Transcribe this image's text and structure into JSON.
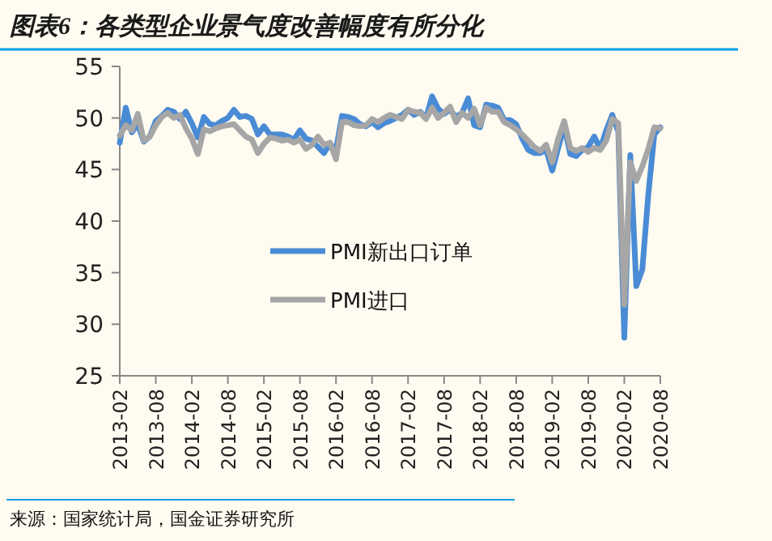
{
  "chart_data": {
    "type": "line",
    "title": "图表6：各类型企业景气度改善幅度有所分化",
    "x": [
      "2013-02",
      "2013-03",
      "2013-04",
      "2013-05",
      "2013-06",
      "2013-07",
      "2013-08",
      "2013-09",
      "2013-10",
      "2013-11",
      "2013-12",
      "2014-01",
      "2014-02",
      "2014-03",
      "2014-04",
      "2014-05",
      "2014-06",
      "2014-07",
      "2014-08",
      "2014-09",
      "2014-10",
      "2014-11",
      "2014-12",
      "2015-01",
      "2015-02",
      "2015-03",
      "2015-04",
      "2015-05",
      "2015-06",
      "2015-07",
      "2015-08",
      "2015-09",
      "2015-10",
      "2015-11",
      "2015-12",
      "2016-01",
      "2016-02",
      "2016-03",
      "2016-04",
      "2016-05",
      "2016-06",
      "2016-07",
      "2016-08",
      "2016-09",
      "2016-10",
      "2016-11",
      "2016-12",
      "2017-01",
      "2017-02",
      "2017-03",
      "2017-04",
      "2017-05",
      "2017-06",
      "2017-07",
      "2017-08",
      "2017-09",
      "2017-10",
      "2017-11",
      "2017-12",
      "2018-01",
      "2018-02",
      "2018-03",
      "2018-04",
      "2018-05",
      "2018-06",
      "2018-07",
      "2018-08",
      "2018-09",
      "2018-10",
      "2018-11",
      "2018-12",
      "2019-01",
      "2019-02",
      "2019-03",
      "2019-04",
      "2019-05",
      "2019-06",
      "2019-07",
      "2019-08",
      "2019-09",
      "2019-10",
      "2019-11",
      "2019-12",
      "2020-01",
      "2020-02",
      "2020-03",
      "2020-04",
      "2020-05",
      "2020-06",
      "2020-07",
      "2020-08"
    ],
    "series": [
      {
        "name": "PMI新出口订单",
        "color": "#4a8bd6",
        "values": [
          47.6,
          51.0,
          48.6,
          49.4,
          47.7,
          48.2,
          49.7,
          50.2,
          50.8,
          50.6,
          49.9,
          50.6,
          49.5,
          48.1,
          50.1,
          49.4,
          49.3,
          49.7,
          50.0,
          50.8,
          50.1,
          50.2,
          49.9,
          48.4,
          49.2,
          48.4,
          48.4,
          48.4,
          48.2,
          47.9,
          48.8,
          48.0,
          47.8,
          47.2,
          46.6,
          47.5,
          46.9,
          50.2,
          50.1,
          49.9,
          49.4,
          49.2,
          49.6,
          49.1,
          49.5,
          49.7,
          50.0,
          50.3,
          50.8,
          50.3,
          50.6,
          50.0,
          52.1,
          50.9,
          50.4,
          50.8,
          50.1,
          50.5,
          51.9,
          49.3,
          49.1,
          51.3,
          51.2,
          51.0,
          49.8,
          49.8,
          49.4,
          48.0,
          46.9,
          46.6,
          46.6,
          46.9,
          44.9,
          47.1,
          49.2,
          46.5,
          46.3,
          46.9,
          47.2,
          48.2,
          47.0,
          48.8,
          50.3,
          48.7,
          28.7,
          46.4,
          33.7,
          35.3,
          42.6,
          48.4,
          49.1
        ]
      },
      {
        "name": "PMI进口",
        "color": "#a6a6a6",
        "values": [
          48.3,
          49.3,
          48.8,
          50.4,
          47.8,
          48.2,
          49.3,
          50.1,
          50.5,
          50.0,
          50.3,
          49.0,
          48.0,
          46.5,
          48.9,
          48.7,
          49.0,
          49.2,
          49.3,
          49.4,
          48.8,
          48.2,
          47.9,
          46.6,
          47.5,
          48.1,
          48.0,
          47.8,
          47.9,
          47.6,
          47.9,
          47.0,
          47.4,
          48.2,
          47.4,
          47.6,
          46.0,
          49.6,
          49.6,
          49.3,
          49.2,
          49.3,
          49.9,
          49.6,
          50.0,
          50.3,
          50.1,
          49.9,
          50.8,
          50.6,
          50.5,
          49.9,
          51.0,
          50.0,
          50.5,
          51.1,
          49.6,
          50.5,
          50.0,
          50.9,
          49.3,
          51.0,
          50.6,
          50.6,
          49.6,
          49.3,
          48.9,
          48.4,
          47.8,
          47.2,
          46.8,
          47.4,
          45.7,
          48.0,
          49.7,
          47.1,
          46.8,
          47.1,
          46.7,
          47.1,
          46.9,
          47.8,
          49.9,
          49.5,
          31.9,
          45.7,
          43.9,
          45.3,
          47.0,
          49.1,
          49.0
        ]
      }
    ],
    "xlim": [
      "2013-02",
      "2020-08"
    ],
    "xticks": [
      "2013-02",
      "2013-08",
      "2014-02",
      "2014-08",
      "2015-02",
      "2015-08",
      "2016-02",
      "2016-08",
      "2017-02",
      "2017-08",
      "2018-02",
      "2018-08",
      "2019-02",
      "2019-08",
      "2020-02",
      "2020-08"
    ],
    "ylim": [
      25,
      55
    ],
    "yticks": [
      25,
      30,
      35,
      40,
      45,
      50,
      55
    ],
    "grid": false,
    "legend": "center",
    "line_style": "solid",
    "marker": "none",
    "annotations": [
      "来源：国家统计局，国金证券研究所"
    ]
  }
}
